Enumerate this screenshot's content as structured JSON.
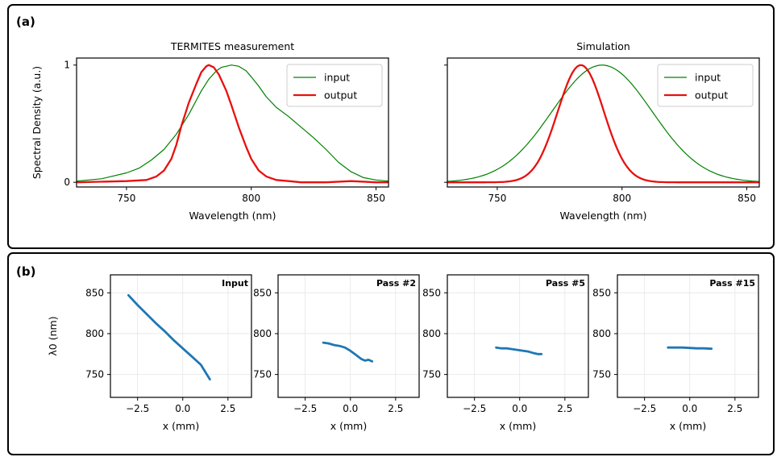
{
  "panels": {
    "a": {
      "label": "(a)"
    },
    "b": {
      "label": "(b)"
    }
  },
  "colors": {
    "input": "#008000",
    "output": "#e8100f",
    "beam": "#1f77b4"
  },
  "chart_data": [
    {
      "type": "line",
      "title": "TERMITES measurement",
      "xlabel": "Wavelength (nm)",
      "ylabel": "Spectral Density (a.u.)",
      "xlim": [
        730,
        855
      ],
      "ylim": [
        -0.04,
        1.06
      ],
      "xticks": [
        750,
        800,
        850
      ],
      "yticks": [
        0,
        1
      ],
      "legend": "top-right",
      "grid": false,
      "series": [
        {
          "name": "input",
          "color": "#008000",
          "width": 1.2,
          "x": [
            730,
            740,
            750,
            755,
            760,
            765,
            770,
            775,
            778,
            780,
            783,
            786,
            788,
            790,
            792,
            795,
            798,
            800,
            803,
            806,
            810,
            815,
            820,
            825,
            830,
            835,
            840,
            845,
            850,
            855
          ],
          "y": [
            0.01,
            0.03,
            0.08,
            0.12,
            0.19,
            0.28,
            0.41,
            0.58,
            0.7,
            0.78,
            0.88,
            0.95,
            0.98,
            0.99,
            1.0,
            0.99,
            0.95,
            0.9,
            0.82,
            0.73,
            0.64,
            0.56,
            0.47,
            0.38,
            0.28,
            0.17,
            0.09,
            0.04,
            0.02,
            0.01
          ]
        },
        {
          "name": "output",
          "color": "#e8100f",
          "width": 2.3,
          "x": [
            730,
            750,
            758,
            762,
            765,
            768,
            770,
            772,
            775,
            778,
            780,
            782,
            783,
            785,
            787,
            790,
            792,
            795,
            798,
            800,
            803,
            806,
            810,
            815,
            820,
            830,
            840,
            850,
            855
          ],
          "y": [
            0,
            0.01,
            0.02,
            0.05,
            0.1,
            0.2,
            0.32,
            0.48,
            0.68,
            0.84,
            0.94,
            0.99,
            1.0,
            0.98,
            0.92,
            0.78,
            0.66,
            0.47,
            0.3,
            0.2,
            0.1,
            0.05,
            0.02,
            0.01,
            0,
            0,
            0.01,
            0,
            0
          ]
        }
      ]
    },
    {
      "type": "line",
      "title": "Simulation",
      "xlabel": "Wavelength (nm)",
      "ylabel": "",
      "xlim": [
        730,
        855
      ],
      "ylim": [
        -0.04,
        1.06
      ],
      "xticks": [
        750,
        800,
        850
      ],
      "yticks": [
        0,
        1
      ],
      "legend": "top-right",
      "grid": false,
      "series": [
        {
          "name": "input",
          "color": "#008000",
          "width": 1.2,
          "x": [
            730,
            740,
            750,
            760,
            765,
            770,
            775,
            780,
            785,
            790,
            792,
            795,
            800,
            805,
            810,
            815,
            820,
            825,
            830,
            840,
            850,
            855
          ],
          "y": [
            0,
            0.01,
            0.04,
            0.15,
            0.26,
            0.42,
            0.61,
            0.79,
            0.93,
            0.995,
            1.0,
            0.99,
            0.93,
            0.81,
            0.65,
            0.48,
            0.33,
            0.2,
            0.11,
            0.03,
            0.01,
            0
          ],
          "model": {
            "kind": "gaussian",
            "center": 792,
            "sigma": 20
          }
        },
        {
          "name": "output",
          "color": "#e8100f",
          "width": 2.3,
          "x": [
            730,
            760,
            765,
            770,
            773,
            776,
            779,
            781,
            783,
            785,
            787,
            790,
            793,
            796,
            800,
            803,
            806,
            810,
            815,
            830,
            855
          ],
          "y": [
            0,
            0.01,
            0.05,
            0.2,
            0.37,
            0.59,
            0.82,
            0.94,
            1.0,
            0.99,
            0.93,
            0.77,
            0.55,
            0.33,
            0.12,
            0.05,
            0.02,
            0.0,
            0,
            0,
            0
          ],
          "model": {
            "kind": "gaussian",
            "center": 783.5,
            "sigma": 9.2
          }
        }
      ]
    },
    {
      "type": "line",
      "title": "Input",
      "xlabel": "x (mm)",
      "ylabel": "λ0 (nm)",
      "xlim": [
        -4.0,
        3.8
      ],
      "ylim": [
        722,
        872
      ],
      "xticks": [
        -2.5,
        0.0,
        2.5
      ],
      "xticklabels": [
        "−2.5",
        "0.0",
        "2.5"
      ],
      "yticks": [
        750,
        800,
        850
      ],
      "grid": true,
      "series": [
        {
          "color": "#1f77b4",
          "x": [
            -3.0,
            -2.5,
            -2.0,
            -1.5,
            -1.0,
            -0.5,
            0.0,
            0.5,
            1.0,
            1.5
          ],
          "y": [
            847,
            835,
            824,
            813,
            803,
            792,
            782,
            772,
            762,
            744
          ]
        }
      ]
    },
    {
      "type": "line",
      "title": "Pass #2",
      "xlabel": "x (mm)",
      "ylabel": "",
      "xlim": [
        -4.0,
        3.8
      ],
      "ylim": [
        722,
        872
      ],
      "xticks": [
        -2.5,
        0.0,
        2.5
      ],
      "xticklabels": [
        "−2.5",
        "0.0",
        "2.5"
      ],
      "yticks": [
        750,
        800,
        850
      ],
      "grid": true,
      "series": [
        {
          "color": "#1f77b4",
          "x": [
            -1.5,
            -1.2,
            -0.9,
            -0.6,
            -0.3,
            0.0,
            0.3,
            0.6,
            0.8,
            1.0,
            1.2
          ],
          "y": [
            789,
            788,
            786,
            785,
            783,
            779,
            774,
            769,
            767,
            768,
            766
          ]
        }
      ]
    },
    {
      "type": "line",
      "title": "Pass #5",
      "xlabel": "x (mm)",
      "ylabel": "",
      "xlim": [
        -4.0,
        3.8
      ],
      "ylim": [
        722,
        872
      ],
      "xticks": [
        -2.5,
        0.0,
        2.5
      ],
      "xticklabels": [
        "−2.5",
        "0.0",
        "2.5"
      ],
      "yticks": [
        750,
        800,
        850
      ],
      "grid": true,
      "series": [
        {
          "color": "#1f77b4",
          "x": [
            -1.3,
            -1.0,
            -0.7,
            -0.4,
            -0.1,
            0.2,
            0.5,
            0.8,
            1.0,
            1.2
          ],
          "y": [
            783,
            782,
            782,
            781,
            780,
            779,
            778,
            776,
            775,
            775
          ]
        }
      ]
    },
    {
      "type": "line",
      "title": "Pass #15",
      "xlabel": "x (mm)",
      "ylabel": "",
      "xlim": [
        -4.0,
        3.8
      ],
      "ylim": [
        722,
        872
      ],
      "xticks": [
        -2.5,
        0.0,
        2.5
      ],
      "xticklabels": [
        "−2.5",
        "0.0",
        "2.5"
      ],
      "yticks": [
        750,
        800,
        850
      ],
      "grid": true,
      "series": [
        {
          "color": "#1f77b4",
          "x": [
            -1.2,
            -0.8,
            -0.4,
            0.0,
            0.4,
            0.8,
            1.2
          ],
          "y": [
            783,
            783,
            783,
            782.5,
            782,
            782,
            781.5
          ]
        }
      ]
    }
  ]
}
